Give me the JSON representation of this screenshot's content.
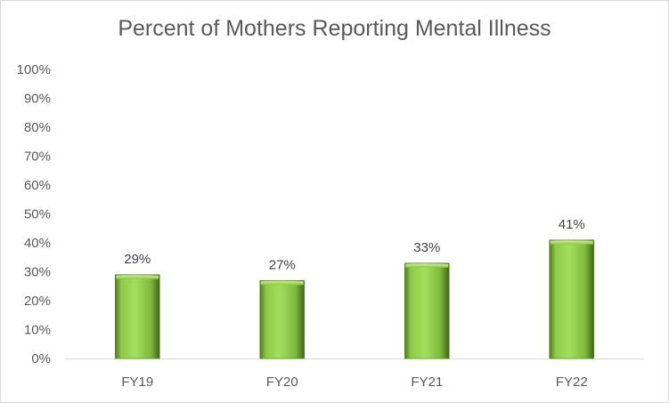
{
  "chart_data": {
    "type": "bar",
    "title": "Percent of Mothers Reporting Mental Illness",
    "categories": [
      "FY19",
      "FY20",
      "FY21",
      "FY22"
    ],
    "values": [
      29,
      27,
      33,
      41
    ],
    "data_labels": [
      "29%",
      "27%",
      "33%",
      "41%"
    ],
    "ylim": [
      0,
      100
    ],
    "yticks": [
      0,
      10,
      20,
      30,
      40,
      50,
      60,
      70,
      80,
      90,
      100
    ],
    "ytick_labels": [
      "0%",
      "10%",
      "20%",
      "30%",
      "40%",
      "50%",
      "60%",
      "70%",
      "80%",
      "90%",
      "100%"
    ],
    "xlabel": "",
    "ylabel": "",
    "grid": false,
    "legend": "none",
    "bar_color": "#92d050"
  }
}
